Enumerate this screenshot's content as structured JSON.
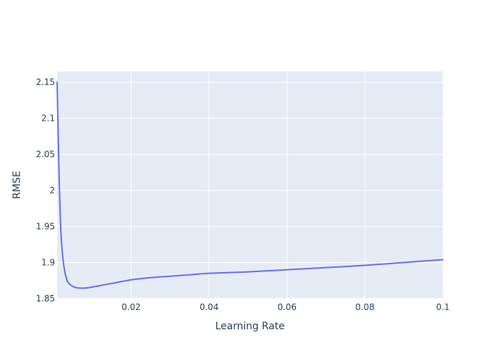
{
  "chart_data": {
    "type": "line",
    "title": "",
    "xlabel": "Learning Rate",
    "ylabel": "RMSE",
    "xlim": [
      0.001,
      0.1
    ],
    "ylim": [
      1.85,
      2.165
    ],
    "x_ticks": [
      0.02,
      0.04,
      0.06,
      0.08,
      0.1
    ],
    "x_tick_labels": [
      "0.02",
      "0.04",
      "0.06",
      "0.08",
      "0.1"
    ],
    "y_ticks": [
      1.85,
      1.9,
      1.95,
      2.0,
      2.05,
      2.1,
      2.15
    ],
    "y_tick_labels": [
      "1.85",
      "1.9",
      "1.95",
      "2",
      "2.05",
      "2.1",
      "2.15"
    ],
    "grid": true,
    "legend": "none",
    "colors": {
      "plot_background": "#e5ecf6",
      "grid": "#ffffff",
      "line": "#636efa",
      "text": "#2a3f5f"
    },
    "series": [
      {
        "x": [
          0.001,
          0.0015,
          0.002,
          0.0025,
          0.003,
          0.0035,
          0.004,
          0.005,
          0.006,
          0.007,
          0.008,
          0.009,
          0.01,
          0.012,
          0.015,
          0.02,
          0.025,
          0.03,
          0.035,
          0.04,
          0.05,
          0.06,
          0.07,
          0.08,
          0.09,
          0.1
        ],
        "y": [
          2.15,
          2.02,
          1.94,
          1.905,
          1.886,
          1.876,
          1.871,
          1.867,
          1.865,
          1.8645,
          1.8645,
          1.865,
          1.866,
          1.868,
          1.871,
          1.876,
          1.879,
          1.881,
          1.883,
          1.885,
          1.887,
          1.89,
          1.893,
          1.896,
          1.9,
          1.904
        ]
      }
    ]
  }
}
